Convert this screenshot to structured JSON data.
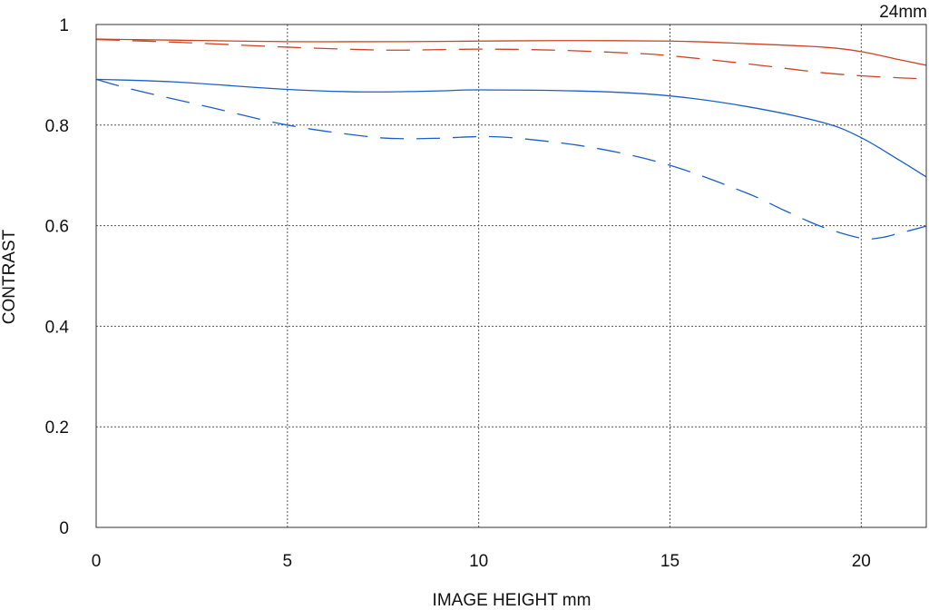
{
  "chart_data": {
    "type": "line",
    "title": "",
    "corner_label": "24mm",
    "xlabel": "IMAGE HEIGHT  mm",
    "ylabel": "CONTRAST",
    "xlim": [
      0,
      21.7
    ],
    "ylim": [
      0,
      1
    ],
    "x_ticks": [
      0,
      5,
      10,
      15,
      20
    ],
    "x_tick_labels": [
      "0",
      "5",
      "10",
      "15",
      "20"
    ],
    "y_ticks": [
      0,
      0.2,
      0.4,
      0.6,
      0.8,
      1
    ],
    "y_tick_labels": [
      "0",
      "0.2",
      "0.4",
      "0.6",
      "0.8",
      "1"
    ],
    "grid": true,
    "legend": "none",
    "series": [
      {
        "color": "#cc4422",
        "dash": "solid",
        "x": [
          0,
          2,
          5,
          8,
          10,
          12,
          15,
          17,
          19,
          20,
          21,
          21.7
        ],
        "y": [
          0.971,
          0.969,
          0.966,
          0.966,
          0.967,
          0.968,
          0.967,
          0.962,
          0.955,
          0.946,
          0.93,
          0.919
        ]
      },
      {
        "color": "#cc4422",
        "dash": "dashed",
        "x": [
          0,
          2,
          5,
          7,
          8,
          10,
          12,
          14,
          15,
          17,
          18,
          19,
          20,
          21,
          21.7
        ],
        "y": [
          0.97,
          0.965,
          0.955,
          0.95,
          0.949,
          0.951,
          0.949,
          0.943,
          0.938,
          0.922,
          0.913,
          0.904,
          0.898,
          0.894,
          0.892
        ]
      },
      {
        "color": "#1a5fcc",
        "dash": "solid",
        "x": [
          0,
          2,
          5,
          7,
          9,
          10,
          13,
          15,
          17,
          19,
          20,
          21,
          21.7
        ],
        "y": [
          0.891,
          0.886,
          0.871,
          0.866,
          0.868,
          0.87,
          0.867,
          0.858,
          0.837,
          0.805,
          0.775,
          0.73,
          0.697
        ]
      },
      {
        "color": "#1a5fcc",
        "dash": "dashed",
        "x": [
          0,
          1,
          3,
          5,
          7,
          8,
          9,
          10,
          11,
          13,
          15,
          17,
          18,
          19,
          20,
          20.5,
          21,
          21.7
        ],
        "y": [
          0.891,
          0.87,
          0.835,
          0.8,
          0.778,
          0.773,
          0.774,
          0.777,
          0.774,
          0.755,
          0.72,
          0.665,
          0.63,
          0.597,
          0.575,
          0.576,
          0.585,
          0.599
        ]
      }
    ]
  }
}
